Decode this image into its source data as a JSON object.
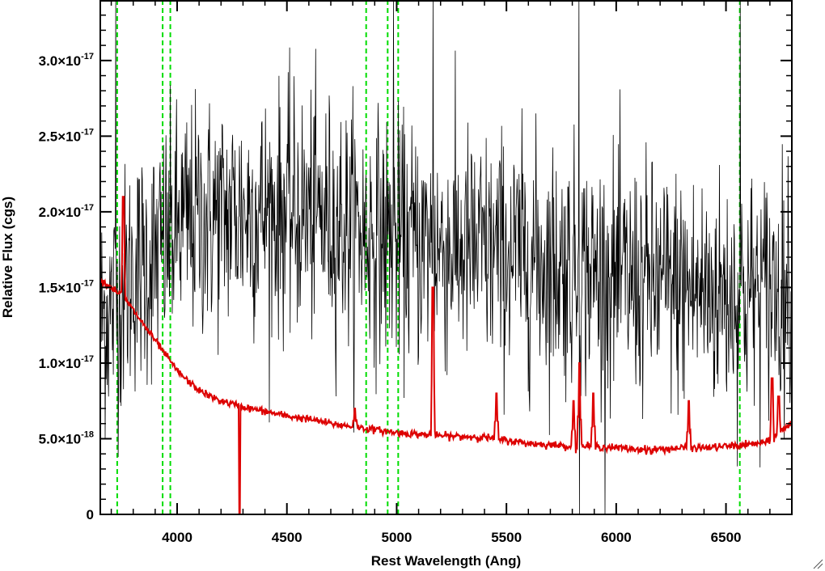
{
  "chart_data": {
    "type": "line",
    "title": "",
    "xlabel": "Rest Wavelength (Ang)",
    "ylabel": "Relative Flux (cgs)",
    "xlim": [
      3650,
      6800
    ],
    "ylim": [
      0,
      3.4e-17
    ],
    "x_ticks": [
      {
        "value": 4000,
        "label": "4000"
      },
      {
        "value": 4500,
        "label": "4500"
      },
      {
        "value": 5000,
        "label": "5000"
      },
      {
        "value": 5500,
        "label": "5500"
      },
      {
        "value": 6000,
        "label": "6000"
      },
      {
        "value": 6500,
        "label": "6500"
      }
    ],
    "y_ticks": [
      {
        "value": 0,
        "mantissa": "0",
        "exponent": ""
      },
      {
        "value": 5e-18,
        "mantissa": "5.0×10",
        "exponent": "-18"
      },
      {
        "value": 1e-17,
        "mantissa": "1.0×10",
        "exponent": "-17"
      },
      {
        "value": 1.5e-17,
        "mantissa": "1.5×10",
        "exponent": "-17"
      },
      {
        "value": 2e-17,
        "mantissa": "2.0×10",
        "exponent": "-17"
      },
      {
        "value": 2.5e-17,
        "mantissa": "2.5×10",
        "exponent": "-17"
      },
      {
        "value": 3e-17,
        "mantissa": "3.0×10",
        "exponent": "-17"
      }
    ],
    "vertical_lines": [
      {
        "x": 3727,
        "color": "#00dd00",
        "style": "dashed"
      },
      {
        "x": 3934,
        "color": "#00dd00",
        "style": "dashed"
      },
      {
        "x": 3969,
        "color": "#00dd00",
        "style": "dashed"
      },
      {
        "x": 4861,
        "color": "#00dd00",
        "style": "dashed"
      },
      {
        "x": 4959,
        "color": "#00dd00",
        "style": "dashed"
      },
      {
        "x": 5007,
        "color": "#00dd00",
        "style": "dashed"
      },
      {
        "x": 6563,
        "color": "#00dd00",
        "style": "dashed"
      }
    ],
    "series": [
      {
        "type": "noisy-spectrum",
        "color": "#000000",
        "continuum": [
          [
            3650,
            1.3e-17
          ],
          [
            3700,
            1.35e-17
          ],
          [
            3800,
            1.6e-17
          ],
          [
            3900,
            1.7e-17
          ],
          [
            4000,
            1.9e-17
          ],
          [
            4100,
            1.95e-17
          ],
          [
            4300,
            2e-17
          ],
          [
            4500,
            2e-17
          ],
          [
            4700,
            1.95e-17
          ],
          [
            5000,
            1.8e-17
          ],
          [
            5300,
            1.75e-17
          ],
          [
            5600,
            1.7e-17
          ],
          [
            6000,
            1.55e-17
          ],
          [
            6500,
            1.45e-17
          ],
          [
            6800,
            1.5e-17
          ]
        ],
        "noise_sigma": 4e-18,
        "spikes": [
          [
            3720,
            3.4e-17
          ],
          [
            4985,
            3.4e-17
          ],
          [
            5165,
            3.4e-17
          ],
          [
            5830,
            3.4e-17
          ],
          [
            6565,
            3.4e-17
          ],
          [
            5833,
            0
          ]
        ]
      },
      {
        "type": "model",
        "color": "#dd0000",
        "points": [
          [
            3650,
            1.55e-17
          ],
          [
            3700,
            1.5e-17
          ],
          [
            3750,
            1.45e-17
          ],
          [
            3800,
            1.35e-17
          ],
          [
            3850,
            1.25e-17
          ],
          [
            3900,
            1.15e-17
          ],
          [
            3950,
            1.05e-17
          ],
          [
            4000,
            9.5e-18
          ],
          [
            4050,
            8.8e-18
          ],
          [
            4100,
            8.2e-18
          ],
          [
            4150,
            7.8e-18
          ],
          [
            4200,
            7.5e-18
          ],
          [
            4300,
            7.1e-18
          ],
          [
            4400,
            6.8e-18
          ],
          [
            4500,
            6.5e-18
          ],
          [
            4600,
            6.3e-18
          ],
          [
            4700,
            6e-18
          ],
          [
            4800,
            5.8e-18
          ],
          [
            4900,
            5.6e-18
          ],
          [
            5000,
            5.4e-18
          ],
          [
            5100,
            5.3e-18
          ],
          [
            5200,
            5.2e-18
          ],
          [
            5300,
            5.15e-18
          ],
          [
            5400,
            5.1e-18
          ],
          [
            5500,
            4.9e-18
          ],
          [
            5600,
            4.7e-18
          ],
          [
            5700,
            4.6e-18
          ],
          [
            5800,
            4.5e-18
          ],
          [
            5900,
            4.5e-18
          ],
          [
            6000,
            4.4e-18
          ],
          [
            6100,
            4.3e-18
          ],
          [
            6200,
            4.3e-18
          ],
          [
            6300,
            4.4e-18
          ],
          [
            6400,
            4.4e-18
          ],
          [
            6500,
            4.5e-18
          ],
          [
            6600,
            4.6e-18
          ],
          [
            6650,
            4.7e-18
          ],
          [
            6700,
            4.8e-18
          ],
          [
            6750,
            5.5e-18
          ],
          [
            6800,
            6e-18
          ]
        ],
        "spikes": [
          [
            3755,
            2.1e-17
          ],
          [
            4285,
            0
          ],
          [
            4810,
            7e-18
          ],
          [
            5165,
            1.5e-17
          ],
          [
            5455,
            8e-18
          ],
          [
            5805,
            7.5e-18
          ],
          [
            5832,
            1e-17
          ],
          [
            5895,
            8e-18
          ],
          [
            6160,
            4e-18
          ],
          [
            6330,
            7.5e-18
          ],
          [
            6710,
            9e-18
          ],
          [
            6740,
            7.8e-18
          ]
        ]
      }
    ],
    "grid": false,
    "legend": "none"
  }
}
